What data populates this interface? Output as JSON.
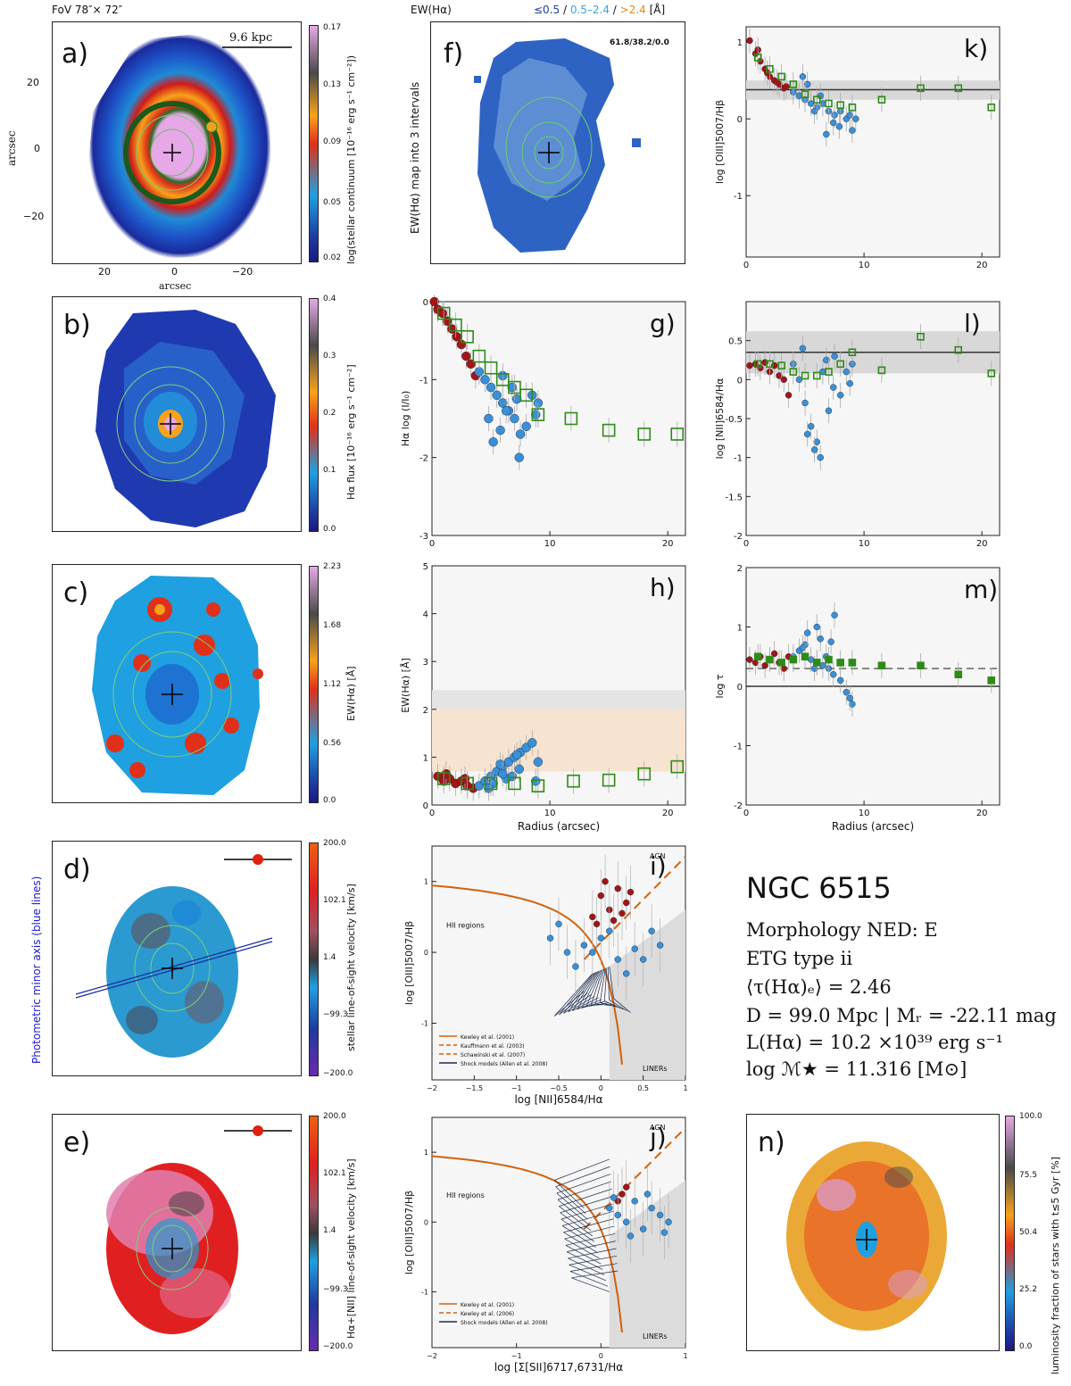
{
  "header": {
    "fov": "FoV 78″× 72″",
    "ew_title": "EW(Hα)",
    "ew_intervals": {
      "low": "≤0.5",
      "sep1": " / ",
      "mid": "0.5–2.4",
      "sep2": " / ",
      "high": ">2.4",
      "unit": " [Å]"
    },
    "ratio_text": "61.8/38.2/0.0",
    "scalebar": "9.6  kpc"
  },
  "panels": {
    "a": {
      "label": "a)",
      "xlabel": "arcsec",
      "ylabel": "arcsec",
      "cbar_label": "log(stellar continuum [10⁻¹⁶ erg s⁻¹ cm⁻²])",
      "cbar_ticks": [
        "0.17",
        "0.13",
        "0.09",
        "0.05",
        "0.02"
      ],
      "xticks": [
        "20",
        "0",
        "−20"
      ],
      "yticks": [
        "20",
        "0",
        "−20"
      ]
    },
    "b": {
      "label": "b)",
      "cbar_label": "Hα flux [10⁻¹⁶ erg s⁻¹ cm⁻²]",
      "cbar_ticks": [
        "0.4",
        "0.3",
        "0.2",
        "0.1",
        "0.0"
      ]
    },
    "c": {
      "label": "c)",
      "cbar_label": "EW(Hα) [Å]",
      "cbar_ticks": [
        "2.23",
        "1.68",
        "1.12",
        "0.56",
        "0.0"
      ]
    },
    "d": {
      "label": "d)",
      "side_label": "Photometric minor axis (blue lines)",
      "cbar_label": "stellar line-of-sight velocity [km/s]",
      "cbar_ticks": [
        "200.0",
        "102.1",
        "1.4",
        "−99.3",
        "−200.0"
      ]
    },
    "e": {
      "label": "e)",
      "cbar_label": "Hα+[NII] line-of-sight velocity [km/s]",
      "cbar_ticks": [
        "200.0",
        "102.1",
        "1.4",
        "−99.3",
        "−200.0"
      ]
    },
    "f": {
      "label": "f)",
      "ylabel": "EW(Hα) map into 3 intervals"
    },
    "n": {
      "label": "n)",
      "cbar_label": "luminosity fraction of stars with t≤5 Gyr [%]",
      "cbar_ticks": [
        "100.0",
        "75.5",
        "50.4",
        "25.2",
        "0.0"
      ]
    }
  },
  "info": {
    "name": "NGC 6515",
    "morphology": "Morphology NED: E",
    "etg_type": "ETG type ii",
    "tau": "⟨τ(Hα)ₑ⟩ = 2.46",
    "distance": "D = 99.0 Mpc | Mᵣ = -22.11 mag",
    "lha": "L(Hα) = 10.2 ×10³⁹ erg s⁻¹",
    "mass": "log ℳ★ = 11.316 [M⊙]"
  },
  "colors": {
    "red_points": "#a31515",
    "blue_points": "#3a8fd6",
    "green_squares": "#2e8b17",
    "kewley": "#d4600a"
  },
  "chart_data": [
    {
      "id": "k",
      "label": "k)",
      "type": "scatter",
      "xlabel": "",
      "ylabel": "log [OIII]5007/Hβ",
      "xlim": [
        0,
        21.5
      ],
      "ylim": [
        -1.8,
        1.2
      ],
      "xticks": [
        0,
        10,
        20
      ],
      "yticks": [
        1,
        0,
        -1
      ],
      "hline": 0.38,
      "band": [
        0.25,
        0.5
      ],
      "series": [
        {
          "name": "inner",
          "color": "#a31515",
          "x": [
            0.3,
            0.8,
            1.2,
            1.6,
            2.0,
            2.4,
            2.8,
            3.2,
            1.0,
            1.8,
            2.6,
            3.4
          ],
          "y": [
            1.02,
            0.85,
            0.75,
            0.65,
            0.55,
            0.5,
            0.45,
            0.4,
            0.9,
            0.6,
            0.48,
            0.42
          ]
        },
        {
          "name": "outer",
          "color": "#3a8fd6",
          "x": [
            4.0,
            4.5,
            5.0,
            5.5,
            6.0,
            6.5,
            7.0,
            7.5,
            8.0,
            8.5,
            9.0,
            5.2,
            6.3,
            7.4,
            4.8,
            6.8,
            8.8,
            5.8,
            7.9,
            9.3
          ],
          "y": [
            0.35,
            0.3,
            0.25,
            0.2,
            0.15,
            0.2,
            0.1,
            0.05,
            0.1,
            0.0,
            -0.15,
            0.45,
            0.3,
            -0.05,
            0.55,
            -0.2,
            0.05,
            0.1,
            -0.1,
            0.0
          ]
        },
        {
          "name": "binned",
          "color": "#2e8b17",
          "x": [
            1.0,
            2.0,
            3.0,
            4.0,
            5.0,
            6.0,
            7.0,
            8.0,
            9.0,
            11.5,
            14.8,
            18.0,
            20.8
          ],
          "y": [
            0.8,
            0.65,
            0.55,
            0.45,
            0.32,
            0.25,
            0.2,
            0.18,
            0.15,
            0.25,
            0.4,
            0.4,
            0.15
          ]
        }
      ]
    },
    {
      "id": "l",
      "label": "l)",
      "type": "scatter",
      "xlabel": "",
      "ylabel": "log [NII]6584/Hα",
      "xlim": [
        0,
        21.5
      ],
      "ylim": [
        -2.0,
        1.0
      ],
      "xticks": [
        0,
        10,
        20
      ],
      "yticks": [
        0.5,
        0,
        -0.5,
        -1,
        -1.5,
        -2
      ],
      "hline": 0.35,
      "band": [
        0.08,
        0.62
      ],
      "series": [
        {
          "name": "inner",
          "color": "#a31515",
          "x": [
            0.3,
            0.8,
            1.2,
            1.6,
            2.0,
            2.4,
            2.8,
            3.2,
            3.6
          ],
          "y": [
            0.18,
            0.2,
            0.15,
            0.22,
            0.1,
            0.18,
            0.05,
            0.0,
            -0.2
          ]
        },
        {
          "name": "outer",
          "color": "#3a8fd6",
          "x": [
            4.0,
            4.5,
            5.0,
            5.5,
            6.0,
            6.5,
            7.0,
            7.5,
            8.0,
            8.5,
            9.0,
            5.2,
            6.3,
            7.4,
            4.8,
            6.8,
            8.8,
            5.8
          ],
          "y": [
            0.2,
            0.0,
            -0.3,
            -0.6,
            -0.8,
            0.1,
            -0.4,
            0.3,
            -0.2,
            0.1,
            0.2,
            -0.7,
            -1.0,
            -0.1,
            0.4,
            0.25,
            -0.05,
            -0.9
          ]
        },
        {
          "name": "binned",
          "color": "#2e8b17",
          "x": [
            1.0,
            2.0,
            3.0,
            4.0,
            5.0,
            6.0,
            7.0,
            8.0,
            9.0,
            11.5,
            14.8,
            18.0,
            20.8
          ],
          "y": [
            0.2,
            0.2,
            0.18,
            0.1,
            0.05,
            0.05,
            0.1,
            0.2,
            0.35,
            0.12,
            0.55,
            0.38,
            0.08
          ]
        }
      ]
    },
    {
      "id": "m",
      "label": "m)",
      "type": "scatter",
      "xlabel": "Radius (arcsec)",
      "ylabel": "log τ",
      "xlim": [
        0,
        21.5
      ],
      "ylim": [
        -2.0,
        2.0
      ],
      "xticks": [
        0,
        10,
        20
      ],
      "yticks": [
        2,
        1,
        0,
        -1,
        -2
      ],
      "hline": 0.0,
      "dashed": 0.3,
      "series": [
        {
          "name": "inner",
          "color": "#a31515",
          "x": [
            0.3,
            0.8,
            1.2,
            1.6,
            2.0,
            2.4,
            2.8,
            3.2,
            3.6
          ],
          "y": [
            0.45,
            0.4,
            0.5,
            0.35,
            0.45,
            0.55,
            0.4,
            0.3,
            0.5
          ]
        },
        {
          "name": "outer",
          "color": "#3a8fd6",
          "x": [
            4.0,
            4.5,
            5.0,
            5.5,
            6.0,
            6.5,
            7.0,
            7.5,
            8.0,
            8.5,
            9.0,
            5.2,
            6.3,
            7.4,
            4.8,
            6.8,
            8.8,
            5.8,
            7.2,
            6.0
          ],
          "y": [
            0.5,
            0.6,
            0.7,
            0.45,
            0.4,
            0.35,
            0.3,
            1.2,
            0.1,
            -0.1,
            -0.3,
            0.9,
            0.8,
            0.2,
            0.65,
            0.5,
            -0.2,
            0.3,
            0.75,
            1.0
          ]
        },
        {
          "name": "binned",
          "color": "#2e8b17",
          "x": [
            1.0,
            2.0,
            3.0,
            4.0,
            5.0,
            6.0,
            7.0,
            8.0,
            9.0,
            11.5,
            14.8,
            18.0,
            20.8
          ],
          "y": [
            0.5,
            0.45,
            0.4,
            0.45,
            0.5,
            0.4,
            0.45,
            0.4,
            0.4,
            0.35,
            0.35,
            0.2,
            0.1
          ]
        }
      ]
    },
    {
      "id": "g",
      "label": "g)",
      "type": "scatter",
      "xlabel": "",
      "ylabel": "Hα log (I/I₀)",
      "xlim": [
        0,
        21.5
      ],
      "ylim": [
        -3.0,
        0.0
      ],
      "xticks": [
        0,
        10,
        20
      ],
      "yticks": [
        0,
        -1,
        -2,
        -3
      ],
      "series": [
        {
          "name": "inner",
          "color": "#a31515",
          "x": [
            0.2,
            0.5,
            0.9,
            1.3,
            1.7,
            2.1,
            2.5,
            2.9,
            3.3,
            3.7
          ],
          "y": [
            0.0,
            -0.1,
            -0.15,
            -0.25,
            -0.35,
            -0.45,
            -0.55,
            -0.7,
            -0.8,
            -0.95
          ]
        },
        {
          "name": "outer",
          "color": "#3a8fd6",
          "x": [
            4.0,
            4.5,
            5.0,
            5.5,
            6.0,
            6.5,
            7.0,
            7.5,
            8.0,
            8.5,
            9.0,
            5.2,
            6.3,
            7.4,
            4.8,
            6.8,
            8.8,
            5.8,
            7.2,
            6.0
          ],
          "y": [
            -0.9,
            -1.0,
            -1.1,
            -1.2,
            -1.3,
            -1.4,
            -1.5,
            -1.7,
            -1.6,
            -1.2,
            -1.3,
            -1.8,
            -1.4,
            -2.0,
            -1.5,
            -1.1,
            -1.45,
            -1.65,
            -1.25,
            -0.95
          ]
        },
        {
          "name": "binned",
          "color": "#2e8b17",
          "x": [
            1.0,
            2.0,
            3.0,
            4.0,
            5.0,
            6.0,
            7.0,
            8.0,
            9.0,
            11.8,
            15.0,
            18.0,
            20.8
          ],
          "y": [
            -0.15,
            -0.3,
            -0.45,
            -0.7,
            -0.85,
            -1.0,
            -1.1,
            -1.2,
            -1.45,
            -1.5,
            -1.65,
            -1.7,
            -1.7
          ]
        }
      ]
    },
    {
      "id": "h",
      "label": "h)",
      "type": "scatter",
      "xlabel": "Radius (arcsec)",
      "ylabel": "EW(Hα) [Å]",
      "xlim": [
        0,
        21.5
      ],
      "ylim": [
        0,
        5
      ],
      "xticks": [
        0,
        10,
        20
      ],
      "yticks": [
        0,
        1,
        2,
        3,
        4,
        5
      ],
      "bands": [
        [
          2.0,
          2.4,
          "#e4e4e4"
        ],
        [
          0.7,
          2.0,
          "#f6e4d0"
        ]
      ],
      "series": [
        {
          "name": "inner",
          "color": "#a31515",
          "x": [
            0.5,
            1.0,
            1.5,
            2.0,
            2.5,
            3.0,
            3.5,
            1.2,
            2.8
          ],
          "y": [
            0.6,
            0.5,
            0.55,
            0.45,
            0.5,
            0.4,
            0.35,
            0.65,
            0.55
          ]
        },
        {
          "name": "outer",
          "color": "#3a8fd6",
          "x": [
            4.0,
            4.5,
            5.0,
            5.5,
            6.0,
            6.5,
            7.0,
            7.5,
            8.0,
            8.5,
            9.0,
            5.2,
            6.3,
            7.4,
            4.8,
            6.8,
            8.8,
            5.8,
            7.2,
            6.0
          ],
          "y": [
            0.4,
            0.5,
            0.6,
            0.7,
            0.8,
            0.9,
            1.0,
            1.1,
            1.2,
            1.3,
            0.9,
            0.45,
            0.55,
            0.75,
            0.35,
            0.6,
            0.5,
            0.85,
            1.05,
            0.65
          ]
        },
        {
          "name": "binned",
          "color": "#2e8b17",
          "x": [
            1.0,
            3.0,
            5.0,
            7.0,
            9.0,
            12.0,
            15.0,
            18.0,
            20.8
          ],
          "y": [
            0.55,
            0.45,
            0.45,
            0.45,
            0.4,
            0.5,
            0.52,
            0.65,
            0.8
          ]
        }
      ]
    },
    {
      "id": "i",
      "label": "i)",
      "type": "scatter",
      "xlabel": "log [NII]6584/Hα",
      "ylabel": "log [OIII]5007/Hβ",
      "xlim": [
        -2,
        1
      ],
      "ylim": [
        -1.8,
        1.5
      ],
      "xticks": [
        "−2",
        "−1.5",
        "−1",
        "−0.5",
        "0",
        "0.5",
        "1"
      ],
      "yticks": [
        1,
        0,
        -1
      ],
      "region_labels": [
        "AGN",
        "HII regions",
        "LINERs"
      ],
      "legend": [
        "Kewley et al. (2001)",
        "Kauffmann et al. (2003)",
        "Schawinski et al. (2007)",
        "Shock models (Allen et al. 2008)"
      ],
      "series": [
        {
          "name": "inner",
          "color": "#a31515",
          "x": [
            0.0,
            0.1,
            -0.1,
            0.2,
            0.3,
            0.05,
            -0.05,
            0.15,
            0.25,
            0.35
          ],
          "y": [
            0.8,
            0.6,
            0.5,
            0.9,
            0.7,
            1.0,
            0.4,
            0.45,
            0.55,
            0.85
          ]
        },
        {
          "name": "outer",
          "color": "#3a8fd6",
          "x": [
            -0.6,
            -0.4,
            -0.2,
            0.0,
            0.2,
            0.4,
            0.6,
            -0.3,
            0.1,
            0.3,
            -0.5,
            0.5,
            0.7,
            -0.1
          ],
          "y": [
            0.2,
            0.0,
            0.1,
            0.2,
            -0.1,
            0.05,
            0.3,
            -0.2,
            0.3,
            -0.3,
            0.4,
            -0.1,
            0.1,
            0.0
          ]
        }
      ]
    },
    {
      "id": "j",
      "label": "j)",
      "type": "scatter",
      "xlabel": "log [Σ[SII]6717,6731/Hα",
      "ylabel": "log [OIII]5007/Hβ",
      "xlim": [
        -2,
        1
      ],
      "ylim": [
        -1.8,
        1.5
      ],
      "xticks": [
        "−2",
        "−1",
        "0",
        "1"
      ],
      "yticks": [
        1,
        0,
        -1
      ],
      "region_labels": [
        "AGN",
        "HII regions",
        "LINERs"
      ],
      "legend": [
        "Kewley et al. (2001)",
        "Kewley et al. (2006)",
        "Shock models (Allen et al. 2008)"
      ],
      "series": [
        {
          "name": "inner",
          "color": "#a31515",
          "x": [
            0.2,
            0.3,
            0.25
          ],
          "y": [
            0.3,
            0.5,
            0.4
          ]
        },
        {
          "name": "outer",
          "color": "#3a8fd6",
          "x": [
            0.1,
            0.2,
            0.3,
            0.4,
            0.5,
            0.6,
            0.7,
            0.8,
            0.15,
            0.35,
            0.55,
            0.75
          ],
          "y": [
            0.2,
            0.1,
            0.0,
            0.3,
            -0.1,
            0.2,
            0.1,
            0.0,
            0.35,
            -0.2,
            0.4,
            -0.15
          ]
        }
      ]
    }
  ]
}
